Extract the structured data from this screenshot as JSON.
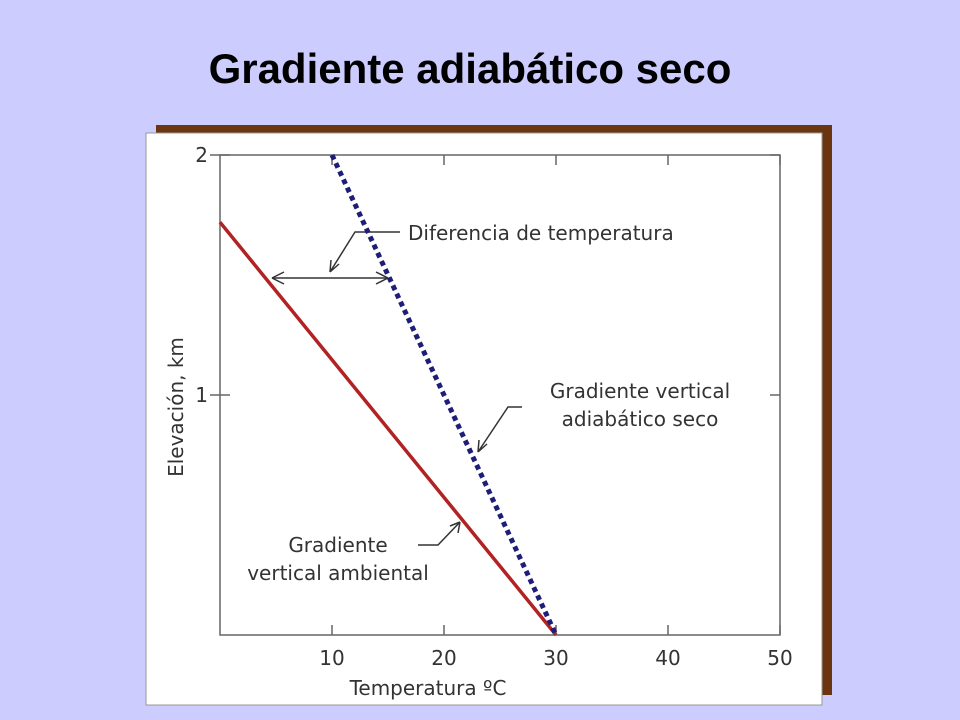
{
  "chart_data": {
    "type": "line",
    "title": "Gradiente adiabático seco",
    "xlabel": "Temperatura ºC",
    "ylabel": "Elevación, km",
    "xlim": [
      0,
      50
    ],
    "xticks": [
      10,
      20,
      30,
      40,
      50
    ],
    "ylim": [
      0,
      2
    ],
    "yticks": [
      1,
      2
    ],
    "series": [
      {
        "color": "#b22222",
        "linestyle": "solid",
        "x": [
          0,
          30
        ],
        "values": [
          1.72,
          0
        ]
      },
      {
        "color": "#1e1e78",
        "linestyle": "dotted",
        "x": [
          10,
          30
        ],
        "values": [
          2,
          0
        ]
      }
    ],
    "annotations": [
      {
        "lines": [
          "Diferencia de temperatura"
        ]
      },
      {
        "lines": [
          "Gradiente vertical",
          "adiabático seco"
        ]
      },
      {
        "lines": [
          "Gradiente",
          "vertical ambiental"
        ]
      }
    ]
  }
}
